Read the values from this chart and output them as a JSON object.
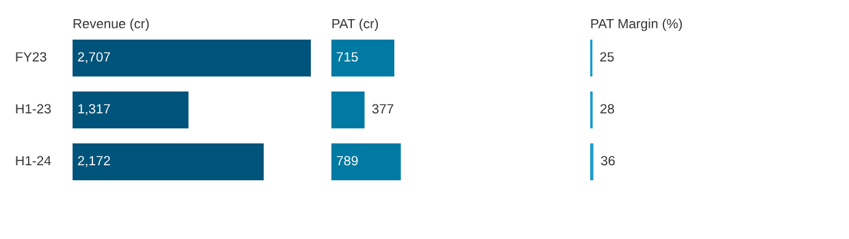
{
  "chart_data": [
    {
      "type": "bar",
      "orientation": "horizontal",
      "title": "Revenue (cr)",
      "categories": [
        "FY23",
        "H1-23",
        "H1-24"
      ],
      "values": [
        2707,
        1317,
        2172
      ],
      "value_labels": [
        "2,707",
        "1,317",
        "2,172"
      ],
      "color": "#00537a",
      "tick_labels": "y"
    },
    {
      "type": "bar",
      "orientation": "horizontal",
      "title": "PAT (cr)",
      "categories": [
        null,
        null,
        null
      ],
      "values": [
        715,
        377,
        789
      ],
      "color": "#007aa3",
      "data_labels": true,
      "tick_labels": false
    },
    {
      "type": "bar",
      "orientation": "horizontal",
      "title": "PAT Margin (%)",
      "categories": [
        null,
        null,
        null
      ],
      "values": [
        25,
        28,
        36
      ],
      "color": "#1a9ccb",
      "data_labels": true,
      "tick_labels": false
    }
  ]
}
